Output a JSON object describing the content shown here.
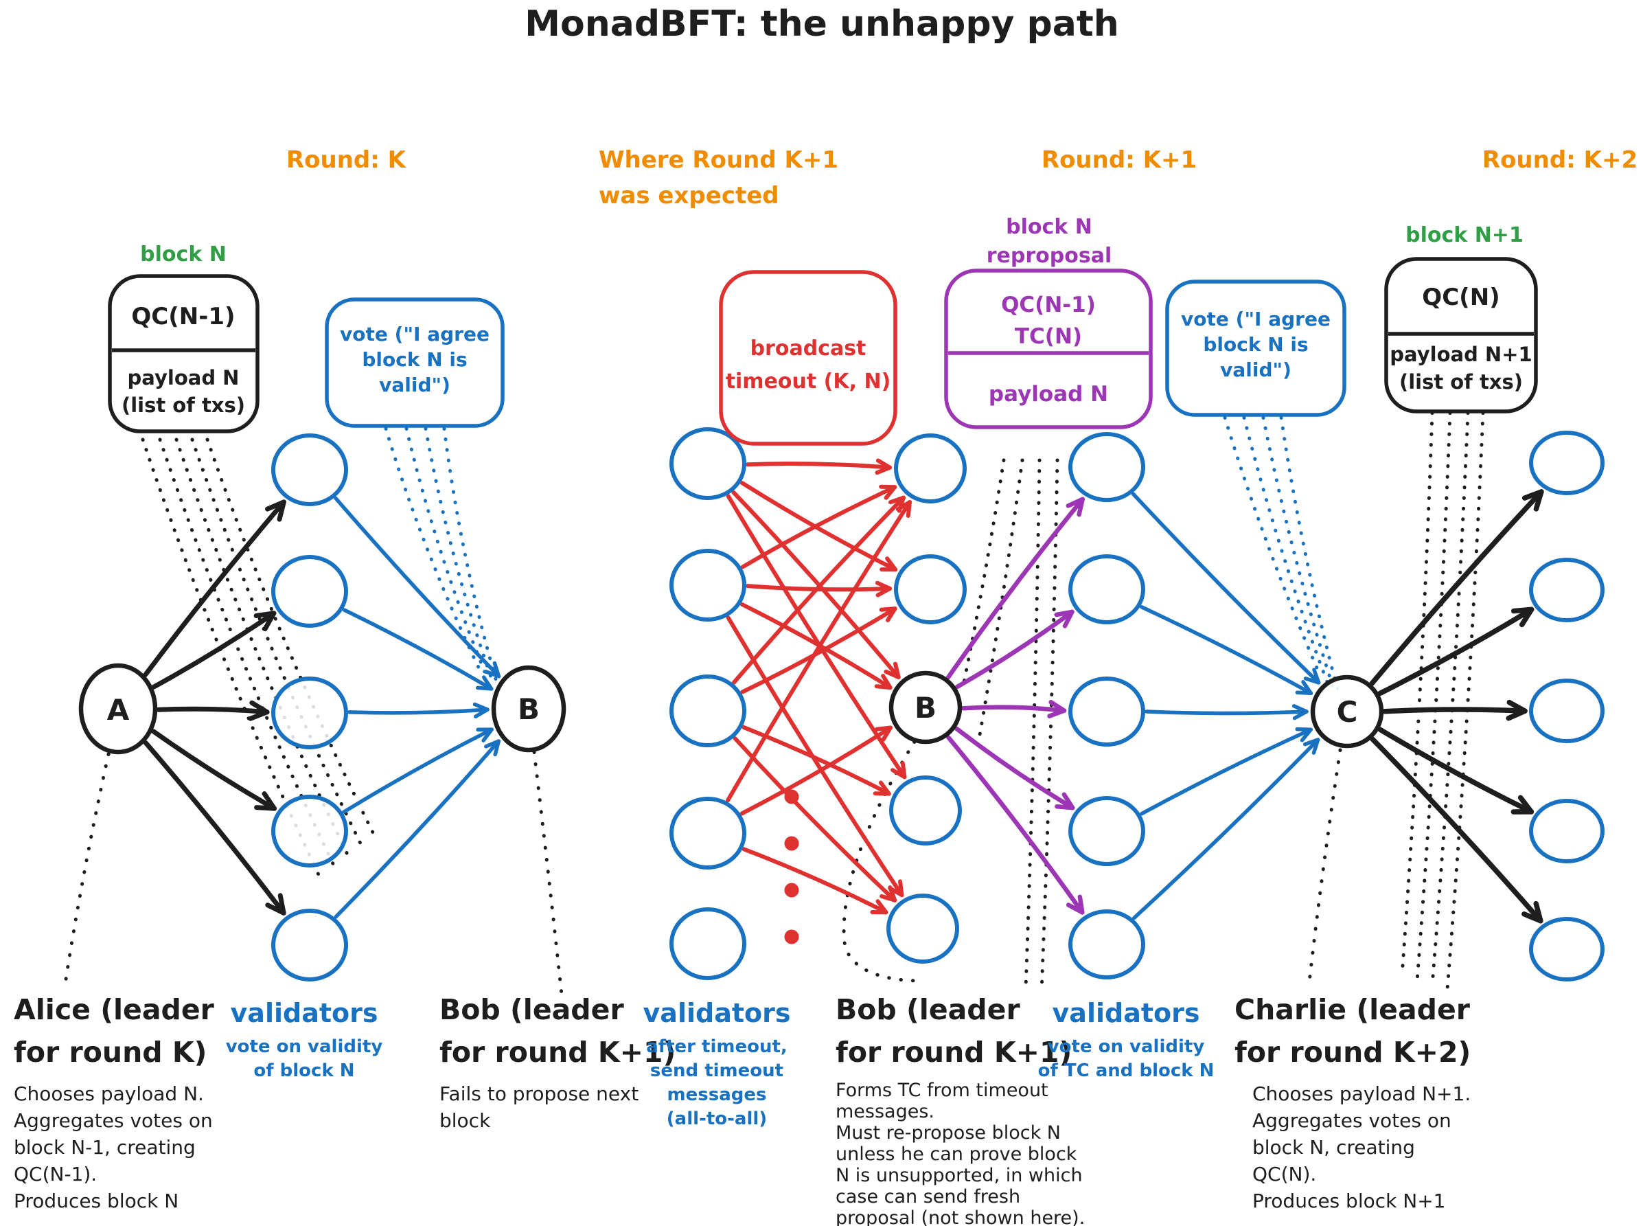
{
  "title": "MonadBFT: the unhappy path",
  "colors": {
    "ink": "#1e1e1e",
    "blue": "#1971c2",
    "red": "#e03131",
    "purple": "#9c36b5",
    "orange": "#f08c00",
    "green": "#2f9e44"
  },
  "round_labels": {
    "k": "Round: K",
    "k1_expected_line1": "Where Round K+1",
    "k1_expected_line2": "was expected",
    "k1": "Round: K+1",
    "k2": "Round: K+2"
  },
  "boxes": {
    "block_n": {
      "tag": "block N",
      "qc": "QC(N-1)",
      "payload": "payload N",
      "payload2": "(list of txs)"
    },
    "vote1": {
      "line1": "vote (\"I agree",
      "line2": "block N is",
      "line3": "valid\")"
    },
    "timeout": {
      "line1": "broadcast",
      "line2": "timeout (K, N)"
    },
    "reproposal": {
      "tag_line1": "block N",
      "tag_line2": "reproposal",
      "qc1": "QC(N-1)",
      "qc2": "TC(N)",
      "payload": "payload N"
    },
    "vote2": {
      "line1": "vote (\"I agree",
      "line2": "block N is",
      "line3": "valid\")"
    },
    "block_n1": {
      "tag": "block N+1",
      "qc": "QC(N)",
      "payload": "payload N+1",
      "payload2": "(list of txs)"
    }
  },
  "nodes": {
    "alice": "A",
    "bob1": "B",
    "bob2": "B",
    "charlie": "C"
  },
  "captions": {
    "alice": {
      "heading": [
        "Alice (leader",
        "for round K)"
      ],
      "body": [
        "Chooses payload N.",
        "Aggregates votes on",
        "block N-1, creating",
        "QC(N-1).",
        "Produces block N"
      ]
    },
    "validators1": {
      "heading": "validators",
      "sub": [
        "vote on validity",
        "of block N"
      ]
    },
    "bob1": {
      "heading": [
        "Bob (leader",
        "for round K+1)"
      ],
      "body": [
        "Fails to propose next",
        "block"
      ]
    },
    "validators2": {
      "heading": "validators",
      "sub": [
        "after timeout,",
        "send timeout",
        "messages",
        "(all-to-all)"
      ]
    },
    "bob2": {
      "heading": [
        "Bob (leader",
        "for round K+1)"
      ],
      "body": [
        "Forms TC from timeout",
        "messages.",
        "Must re-propose block N",
        "unless he can prove block",
        "N is unsupported, in which",
        "case can send fresh",
        "proposal (not shown here)."
      ]
    },
    "validators3": {
      "heading": "validators",
      "sub": [
        "vote on validity",
        "of TC and block N"
      ]
    },
    "charlie": {
      "heading": [
        "Charlie (leader",
        "for round K+2)"
      ],
      "body": [
        "Chooses payload N+1.",
        "Aggregates votes on",
        "block N, creating",
        "QC(N).",
        "Produces block N+1"
      ]
    }
  }
}
